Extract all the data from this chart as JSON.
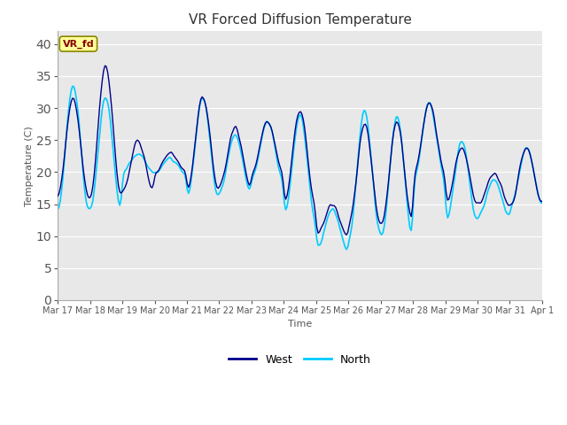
{
  "title": "VR Forced Diffusion Temperature",
  "xlabel": "Time",
  "ylabel": "Temperature (C)",
  "ylim": [
    0,
    42
  ],
  "yticks": [
    0,
    5,
    10,
    15,
    20,
    25,
    30,
    35,
    40
  ],
  "bg_color": "#e8e8e8",
  "fig_color": "#ffffff",
  "west_color": "#00008B",
  "north_color": "#00CCFF",
  "legend_label_west": "West",
  "legend_label_north": "North",
  "annotation_text": "VR_fd",
  "annotation_bg": "#FFFF99",
  "annotation_border": "#888800",
  "annotation_text_color": "#880000",
  "x_tick_labels": [
    "Mar 17",
    "Mar 18",
    "Mar 19",
    "Mar 20",
    "Mar 21",
    "Mar 22",
    "Mar 23",
    "Mar 24",
    "Mar 25",
    "Mar 26",
    "Mar 27",
    "Mar 28",
    "Mar 29",
    "Mar 30",
    "Mar 31",
    "Apr 1"
  ],
  "grid_color": "#ffffff",
  "spine_color": "#aaaaaa"
}
